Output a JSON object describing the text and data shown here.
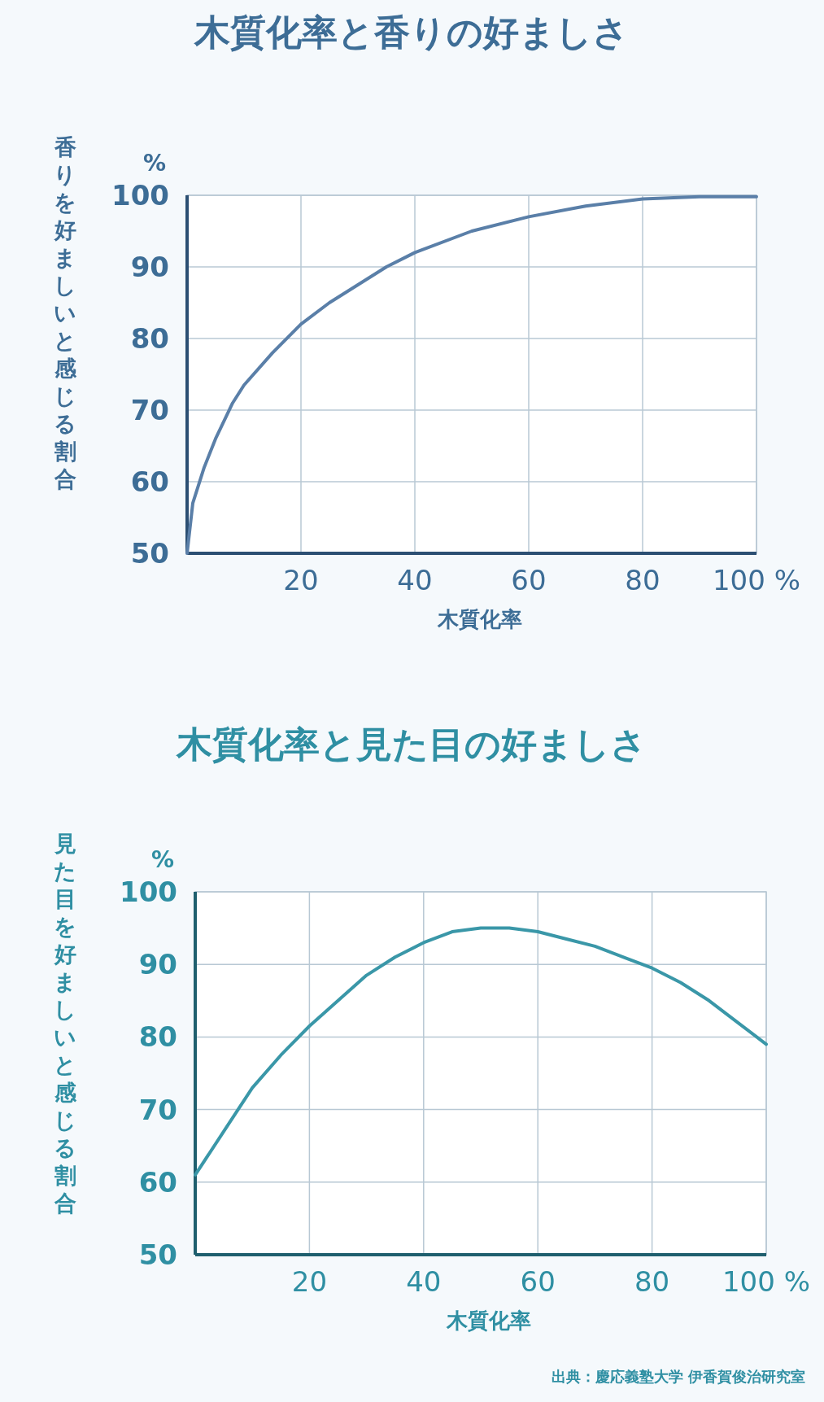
{
  "chart_data": [
    {
      "type": "line",
      "title": "木質化率と香りの好ましさ",
      "xlabel": "木質化率",
      "ylabel": "香りを好ましいと感じる割合",
      "annotations": [
        "%"
      ],
      "x": [
        0,
        1,
        3,
        5,
        8,
        10,
        15,
        20,
        25,
        30,
        35,
        40,
        50,
        60,
        70,
        80,
        90,
        100
      ],
      "series": [
        {
          "color": "#5a7fa8",
          "values": [
            50,
            57,
            62,
            66,
            71,
            73.5,
            78,
            82,
            85,
            87.5,
            90,
            92,
            95,
            97,
            98.5,
            99.5,
            99.8,
            99.8
          ]
        }
      ],
      "xlim": [
        0,
        100
      ],
      "ylim": [
        50,
        100
      ],
      "xticks": [
        20,
        40,
        60,
        80,
        {
          "value": 100,
          "label": "100 %"
        }
      ],
      "yticks": [
        50,
        60,
        70,
        80,
        90,
        100
      ],
      "grid": true
    },
    {
      "type": "line",
      "title": "木質化率と見た目の好ましさ",
      "xlabel": "木質化率",
      "ylabel": "見た目を好ましいと感じる割合",
      "annotations": [
        "%",
        "出典：慶応義塾大学 伊香賀俊治研究室"
      ],
      "x": [
        0,
        5,
        10,
        15,
        20,
        25,
        30,
        35,
        40,
        45,
        50,
        55,
        60,
        65,
        70,
        75,
        80,
        85,
        90,
        95,
        100
      ],
      "series": [
        {
          "color": "#3a97a8",
          "values": [
            61,
            67,
            73,
            77.5,
            81.5,
            85,
            88.5,
            91,
            93,
            94.5,
            95,
            95,
            94.5,
            93.5,
            92.5,
            91,
            89.5,
            87.5,
            85,
            82,
            79
          ]
        }
      ],
      "xlim": [
        0,
        100
      ],
      "ylim": [
        50,
        100
      ],
      "xticks": [
        20,
        40,
        60,
        80,
        {
          "value": 100,
          "label": "100 %"
        }
      ],
      "yticks": [
        50,
        60,
        70,
        80,
        90,
        100
      ],
      "grid": true
    }
  ]
}
